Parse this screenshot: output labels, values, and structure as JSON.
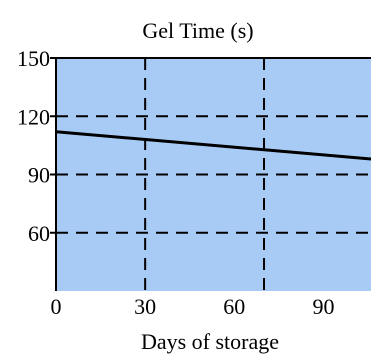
{
  "chart_data": {
    "type": "line",
    "title": "Gel Time (s)",
    "xlabel": "Days of storage",
    "ylabel": "",
    "xlim": [
      0,
      106
    ],
    "ylim": [
      30,
      150
    ],
    "xticks": [
      0,
      30,
      60,
      90
    ],
    "yticks": [
      60,
      90,
      120,
      150
    ],
    "vgrid": [
      30,
      70
    ],
    "hgrid": [
      60,
      90,
      120
    ],
    "grid": true,
    "grid_style": "dashed",
    "plot_background": "#a8cbf6",
    "line_color": "#000000",
    "series": [
      {
        "x": [
          0,
          106
        ],
        "y": [
          112,
          98
        ]
      }
    ]
  }
}
